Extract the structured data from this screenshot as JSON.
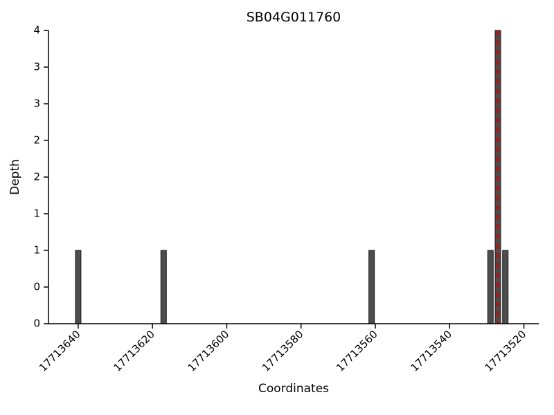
{
  "chart_data": {
    "type": "bar",
    "title": "SB04G011760",
    "xlabel": "Coordinates",
    "ylabel": "Depth",
    "x_axis": {
      "reversed": true,
      "left_value": 17713648,
      "right_value": 17713516,
      "ticks": [
        17713640,
        17713620,
        17713600,
        17713580,
        17713560,
        17713540,
        17713520
      ]
    },
    "y_axis": {
      "min": 0,
      "max": 4,
      "ticks": [
        {
          "value": 0,
          "label": "0"
        },
        {
          "value": 0.5,
          "label": "0"
        },
        {
          "value": 1,
          "label": "1"
        },
        {
          "value": 1.5,
          "label": "1"
        },
        {
          "value": 2,
          "label": "2"
        },
        {
          "value": 2.5,
          "label": "2"
        },
        {
          "value": 3,
          "label": "3"
        },
        {
          "value": 3.5,
          "label": "3"
        },
        {
          "value": 4,
          "label": "4"
        }
      ]
    },
    "bars": [
      {
        "coordinate": 17713640,
        "depth": 1
      },
      {
        "coordinate": 17713617,
        "depth": 1
      },
      {
        "coordinate": 17713561,
        "depth": 1
      },
      {
        "coordinate": 17713529,
        "depth": 1
      },
      {
        "coordinate": 17713527,
        "depth": 4
      },
      {
        "coordinate": 17713525,
        "depth": 1
      }
    ],
    "marker_line": {
      "coordinate": 17713527,
      "color": "#d40000",
      "style": "dashed"
    },
    "colors": {
      "bar_fill": "#4d4d4d",
      "bar_stroke": "#1a1a1a",
      "axis": "#000000",
      "text": "#000000"
    }
  }
}
